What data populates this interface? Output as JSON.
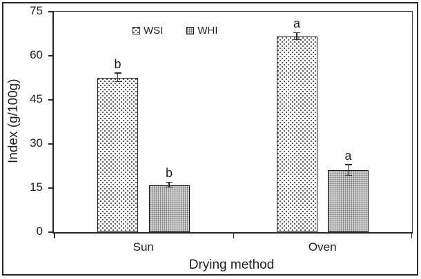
{
  "figure_title": "",
  "axes": {
    "y_title": "Index (g/100g)",
    "x_title": "Drying method"
  },
  "chart_data": {
    "type": "bar",
    "title": "",
    "xlabel": "Drying method",
    "ylabel": "Index (g/100g)",
    "categories": [
      "Sun",
      "Oven"
    ],
    "ylim": [
      0,
      75
    ],
    "yticks": [
      0,
      15,
      30,
      45,
      60,
      75
    ],
    "grid": false,
    "legend_position": "top-center-inside",
    "series": [
      {
        "name": "WSI",
        "values": [
          52.5,
          66.5
        ],
        "errors": [
          1.5,
          1.2
        ],
        "sig_letters": [
          "b",
          "a"
        ],
        "pattern": "dotted-white",
        "fill_color": "#ffffff",
        "dot_color": "#4a4a4a"
      },
      {
        "name": "WHI",
        "values": [
          16,
          21
        ],
        "errors": [
          0.8,
          1.8
        ],
        "sig_letters": [
          "b",
          "a"
        ],
        "pattern": "gray-grid",
        "fill_color": "#d7d7d7",
        "dot_color": "#6e6e6e"
      }
    ]
  }
}
